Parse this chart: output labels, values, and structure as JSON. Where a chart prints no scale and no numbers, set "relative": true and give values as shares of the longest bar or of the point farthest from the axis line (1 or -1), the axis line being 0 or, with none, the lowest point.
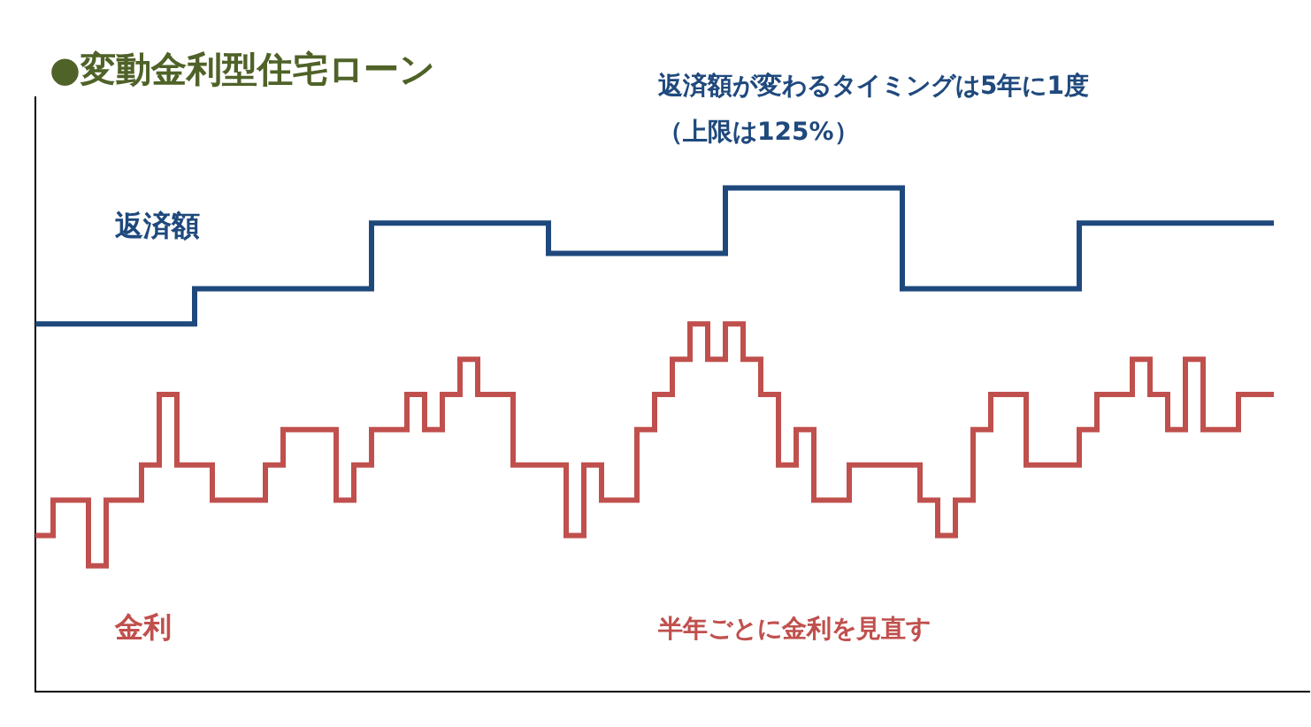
{
  "chart_data": {
    "type": "step",
    "title": "●変動金利型住宅ローン",
    "relative": true,
    "legend": false,
    "grid": false,
    "categories": [
      null,
      null,
      null,
      null,
      null,
      null,
      null,
      null,
      null,
      null,
      null,
      null,
      null,
      null,
      null,
      null,
      null,
      null,
      null,
      null,
      null,
      null,
      null,
      null,
      null,
      null,
      null,
      null,
      null,
      null,
      null,
      null,
      null,
      null,
      null,
      null,
      null,
      null,
      null,
      null,
      null,
      null,
      null,
      null,
      null,
      null,
      null,
      null,
      null,
      null,
      null,
      null,
      null,
      null,
      null,
      null,
      null,
      null,
      null,
      null,
      null,
      null,
      null,
      null,
      null,
      null,
      null,
      null,
      null,
      null,
      null
    ],
    "series": [
      {
        "name": "返済額",
        "color": "#1f497d",
        "values": [
          0.73,
          0.73,
          0.73,
          0.73,
          0.73,
          0.73,
          0.73,
          0.73,
          0.73,
          0.73,
          0.8,
          0.8,
          0.8,
          0.8,
          0.8,
          0.8,
          0.8,
          0.8,
          0.8,
          0.8,
          0.93,
          0.93,
          0.93,
          0.93,
          0.93,
          0.93,
          0.93,
          0.93,
          0.93,
          0.93,
          0.87,
          0.87,
          0.87,
          0.87,
          0.87,
          0.87,
          0.87,
          0.87,
          0.87,
          0.87,
          1,
          1,
          1,
          1,
          1,
          1,
          1,
          1,
          1,
          1,
          0.8,
          0.8,
          0.8,
          0.8,
          0.8,
          0.8,
          0.8,
          0.8,
          0.8,
          0.8,
          0.93,
          0.93,
          0.93,
          0.93,
          0.93,
          0.93,
          0.93,
          0.93,
          0.93,
          0.93,
          0.93
        ]
      },
      {
        "name": "金利",
        "color": "#c0504d",
        "values": [
          0.31,
          0.31,
          0.38,
          0.38,
          0.25,
          0.38,
          0.38,
          0.45,
          0.59,
          0.45,
          0.45,
          0.38,
          0.38,
          0.38,
          0.45,
          0.52,
          0.52,
          0.52,
          0.38,
          0.45,
          0.52,
          0.52,
          0.59,
          0.52,
          0.59,
          0.66,
          0.59,
          0.59,
          0.45,
          0.45,
          0.45,
          0.31,
          0.45,
          0.38,
          0.38,
          0.52,
          0.59,
          0.66,
          0.73,
          0.66,
          0.73,
          0.66,
          0.59,
          0.45,
          0.52,
          0.38,
          0.38,
          0.45,
          0.45,
          0.45,
          0.45,
          0.38,
          0.31,
          0.38,
          0.52,
          0.59,
          0.59,
          0.45,
          0.45,
          0.45,
          0.52,
          0.59,
          0.59,
          0.66,
          0.59,
          0.52,
          0.66,
          0.52,
          0.52,
          0.59,
          0.59
        ]
      }
    ],
    "annotations": [
      "返済額が変わるタイミングは5年に1度",
      "（上限は125%）",
      "半年ごとに金利を見直す"
    ]
  }
}
